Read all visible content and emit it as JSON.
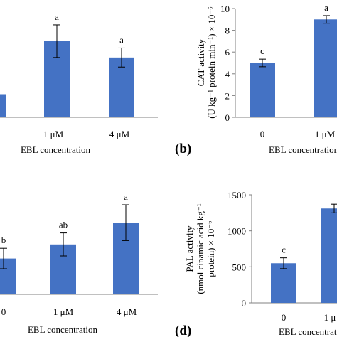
{
  "chart_data": [
    {
      "id": "a",
      "type": "bar",
      "panel_label": "",
      "categories": [
        "",
        "1 μM",
        "4 μM"
      ],
      "values": [
        1.7,
        5.6,
        4.4
      ],
      "errors": [
        0.0,
        1.2,
        0.7
      ],
      "sig": [
        "",
        "a",
        "a"
      ],
      "xlabel": "EBL concentration",
      "ylabel": "",
      "ylim": [
        0,
        8
      ],
      "yticks": []
    },
    {
      "id": "b",
      "type": "bar",
      "panel_label": "(b)",
      "categories": [
        "0",
        "1 μM"
      ],
      "values": [
        5.0,
        9.0
      ],
      "errors": [
        0.35,
        0.35
      ],
      "sig": [
        "c",
        "a"
      ],
      "xlabel": "EBL concentration",
      "ylabel_line1": "CAT activity",
      "ylabel_line2": "(U kg⁻¹ protein min⁻¹) × 10⁻⁶",
      "ylim": [
        0,
        10
      ],
      "yticks": [
        "0",
        "2",
        "4",
        "6",
        "8",
        "10"
      ]
    },
    {
      "id": "c",
      "type": "bar",
      "panel_label": "",
      "categories": [
        "0",
        "1 μM",
        "4 μM"
      ],
      "values": [
        2.8,
        3.9,
        5.6
      ],
      "errors": [
        0.8,
        0.9,
        1.4
      ],
      "sig": [
        "b",
        "ab",
        "a"
      ],
      "xlabel": "EBL concentration",
      "ylabel": "",
      "ylim": [
        0,
        8
      ],
      "yticks": []
    },
    {
      "id": "d",
      "type": "bar",
      "panel_label": "(d)",
      "categories": [
        "0",
        "1 μ"
      ],
      "values": [
        550,
        1310
      ],
      "errors": [
        75,
        60
      ],
      "sig": [
        "c",
        ""
      ],
      "xlabel": "EBL concentration",
      "ylabel_line1": "PAL activity",
      "ylabel_line2": "(nmol cinamic acid kg⁻¹",
      "ylabel_line3": "protein) × 10⁻⁶",
      "ylim": [
        0,
        1500
      ],
      "yticks": [
        "0",
        "500",
        "1000",
        "1500"
      ]
    }
  ],
  "colors": {
    "bar": "#4472C4",
    "axis": "#808080",
    "error": "#000000"
  }
}
